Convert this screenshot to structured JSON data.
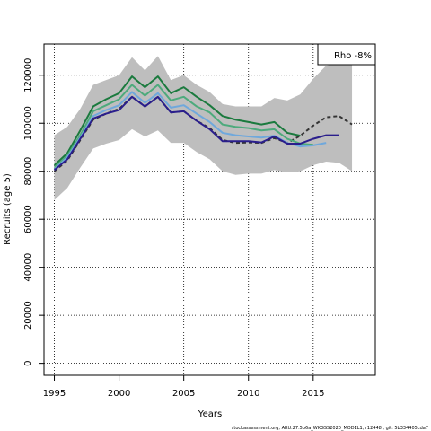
{
  "chart_data": {
    "type": "line",
    "xlabel": "Years",
    "ylabel": "Recruits (age 5)",
    "xlim": [
      1994.2,
      2019.8
    ],
    "ylim": [
      -5000,
      133000
    ],
    "x_ticks": [
      1995,
      2000,
      2005,
      2010,
      2015
    ],
    "y_ticks": [
      0,
      20000,
      40000,
      60000,
      80000,
      100000,
      120000
    ],
    "grid": true,
    "legend": {
      "placement": "top-right",
      "text": "Rho -8%"
    },
    "colors": {
      "band": "#bebebe",
      "final": "#333333",
      "peel1": "#1b7a3e",
      "peel2": "#4daa7c",
      "peel3": "#6fa8dc",
      "peel4": "#2a1e8c"
    },
    "band": {
      "x": [
        1995,
        1996,
        1997,
        1998,
        1999,
        2000,
        2001,
        2002,
        2003,
        2004,
        2005,
        2006,
        2007,
        2008,
        2009,
        2010,
        2011,
        2012,
        2013,
        2014,
        2015,
        2016,
        2017,
        2018
      ],
      "upper": [
        95000,
        98500,
        106000,
        116000,
        118000,
        120000,
        127500,
        122000,
        128000,
        118000,
        120000,
        116000,
        113000,
        108000,
        107000,
        107000,
        107000,
        110500,
        109500,
        112000,
        118500,
        124000,
        125000,
        125000
      ],
      "lower": [
        68000,
        73000,
        81500,
        89500,
        91500,
        93000,
        97500,
        94500,
        97000,
        91800,
        91800,
        88000,
        85000,
        80000,
        78500,
        79000,
        79000,
        80500,
        79500,
        80000,
        82500,
        84000,
        83500,
        80000
      ]
    },
    "series": [
      {
        "x": [
          1995,
          1996,
          1997,
          1998,
          1999,
          2000,
          2001,
          2002,
          2003,
          2004,
          2005,
          2006,
          2007,
          2008,
          2009,
          2010,
          2011,
          2012,
          2013,
          2014,
          2015,
          2016,
          2017,
          2018
        ],
        "values": [
          80000,
          84500,
          93000,
          101500,
          104000,
          106000,
          111000,
          107000,
          111000,
          104500,
          105000,
          101000,
          98000,
          93000,
          91800,
          92000,
          91800,
          93800,
          91800,
          94800,
          99000,
          102500,
          103000,
          99500
        ],
        "style": "dashed",
        "color_key": "final"
      },
      {
        "x": [
          1995,
          1996,
          1997,
          1998,
          1999,
          2000,
          2001,
          2002,
          2003,
          2004,
          2005,
          2006,
          2007,
          2008,
          2009,
          2010,
          2011,
          2012,
          2013,
          2014
        ],
        "values": [
          82500,
          87500,
          97000,
          107000,
          110000,
          112500,
          119500,
          115000,
          119500,
          112500,
          115000,
          111000,
          107500,
          103000,
          101500,
          100500,
          99500,
          100500,
          96000,
          94800
        ],
        "style": "solid",
        "color_key": "peel1"
      },
      {
        "x": [
          1995,
          1996,
          1997,
          1998,
          1999,
          2000,
          2001,
          2002,
          2003,
          2004,
          2005,
          2006,
          2007,
          2008,
          2009,
          2010,
          2011,
          2012,
          2013,
          2014,
          2015
        ],
        "values": [
          81500,
          86500,
          95000,
          105000,
          107500,
          110000,
          116000,
          111500,
          116000,
          109500,
          111000,
          107000,
          104500,
          99500,
          98500,
          98000,
          97000,
          97500,
          93500,
          91500,
          91000
        ],
        "style": "solid",
        "color_key": "peel2"
      },
      {
        "x": [
          1995,
          1996,
          1997,
          1998,
          1999,
          2000,
          2001,
          2002,
          2003,
          2004,
          2005,
          2006,
          2007,
          2008,
          2009,
          2010,
          2011,
          2012,
          2013,
          2014,
          2015,
          2016
        ],
        "values": [
          80800,
          85800,
          94000,
          103000,
          105500,
          107500,
          113000,
          108500,
          112500,
          106500,
          107500,
          104000,
          100500,
          96000,
          95000,
          94500,
          94000,
          94800,
          91800,
          90300,
          90800,
          91800
        ],
        "style": "solid",
        "color_key": "peel3"
      },
      {
        "x": [
          1995,
          1996,
          1997,
          1998,
          1999,
          2000,
          2001,
          2002,
          2003,
          2004,
          2005,
          2006,
          2007,
          2008,
          2009,
          2010,
          2011,
          2012,
          2013,
          2014,
          2015,
          2016,
          2017
        ],
        "values": [
          80500,
          85000,
          93500,
          102000,
          104000,
          105500,
          111000,
          107000,
          111000,
          104500,
          105000,
          101000,
          97500,
          92500,
          92500,
          92500,
          92000,
          94500,
          91500,
          91500,
          93500,
          95000,
          95000
        ],
        "style": "solid",
        "color_key": "peel4"
      }
    ]
  },
  "footer": "stockassessment.org, ARU.27.5b6a_WKGSS2020_MODEL1, r12448 , git: 5b334405cda7"
}
